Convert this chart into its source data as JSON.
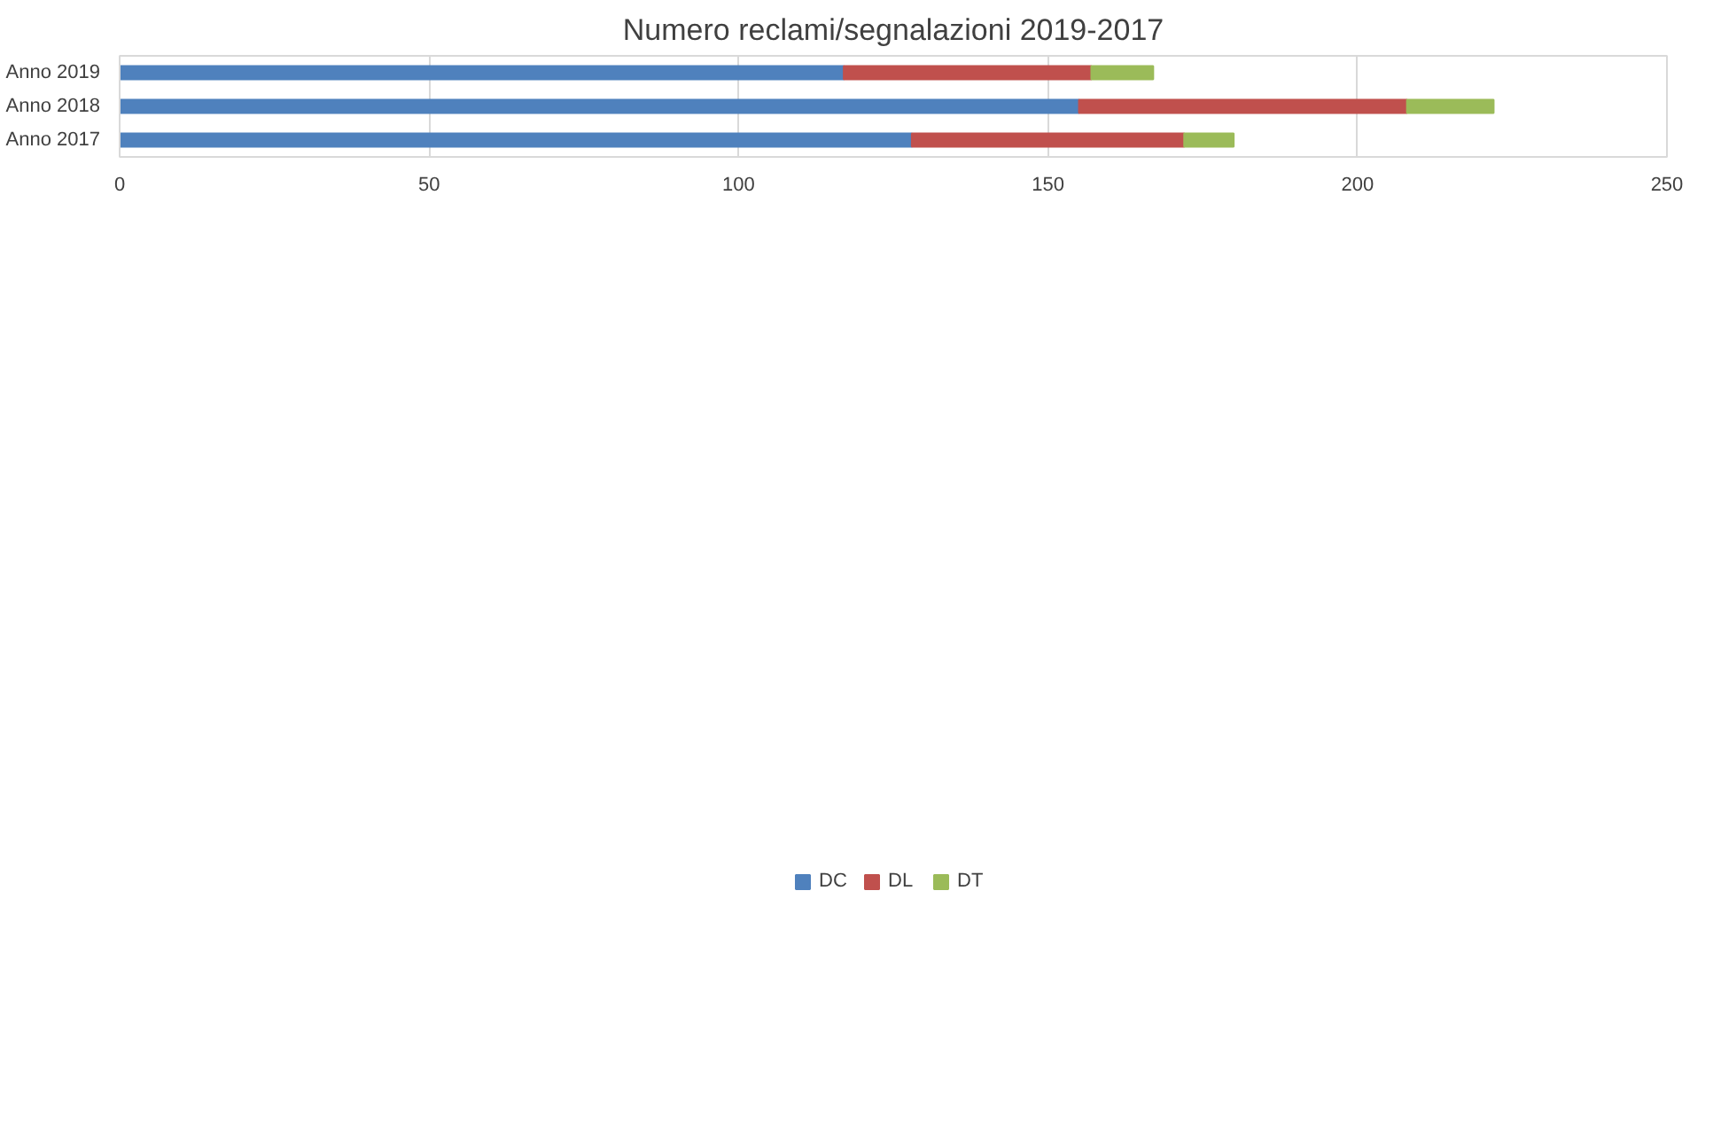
{
  "chart_data": {
    "type": "bar",
    "orientation": "horizontal",
    "stacked": true,
    "title": "Numero reclami/segnalazioni 2019-2017",
    "categories": [
      "Anno 2019",
      "Anno 2018",
      "Anno 2017"
    ],
    "series": [
      {
        "name": "DC",
        "color": "#4f81bd",
        "values": [
          117,
          155,
          128
        ]
      },
      {
        "name": "DL",
        "color": "#c0504d",
        "values": [
          40,
          53,
          44
        ]
      },
      {
        "name": "DT",
        "color": "#9bbb59",
        "values": [
          10,
          14,
          8
        ]
      }
    ],
    "xlim": [
      0,
      250
    ],
    "xticks": [
      0,
      50,
      100,
      150,
      200,
      250
    ],
    "grid": "x",
    "legend": "bottom"
  }
}
